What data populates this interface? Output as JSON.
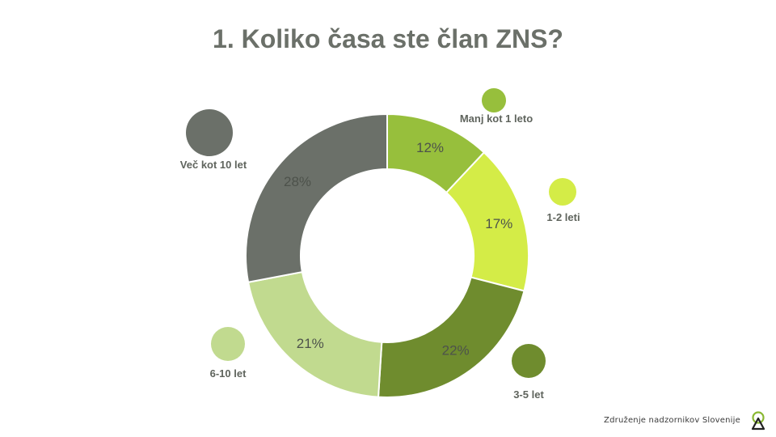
{
  "chart_data": {
    "type": "pie",
    "subtype": "donut",
    "title": "1. Koliko časa ste član ZNS?",
    "slices": [
      {
        "label": "Manj kot 1 leto",
        "value": 12,
        "value_label": "12%",
        "color": "#97bf3c"
      },
      {
        "label": "1-2 leti",
        "value": 17,
        "value_label": "17%",
        "color": "#d4ec47"
      },
      {
        "label": "3-5 let",
        "value": 22,
        "value_label": "22%",
        "color": "#6f8c2e"
      },
      {
        "label": "6-10 let",
        "value": 21,
        "value_label": "21%",
        "color": "#c1da8f"
      },
      {
        "label": "Več kot 10 let",
        "value": 28,
        "value_label": "28%",
        "color": "#6b7069"
      }
    ]
  },
  "footer": {
    "organization": "Združenje nadzornikov Slovenije",
    "logo_icon": "zns-logo-icon"
  }
}
